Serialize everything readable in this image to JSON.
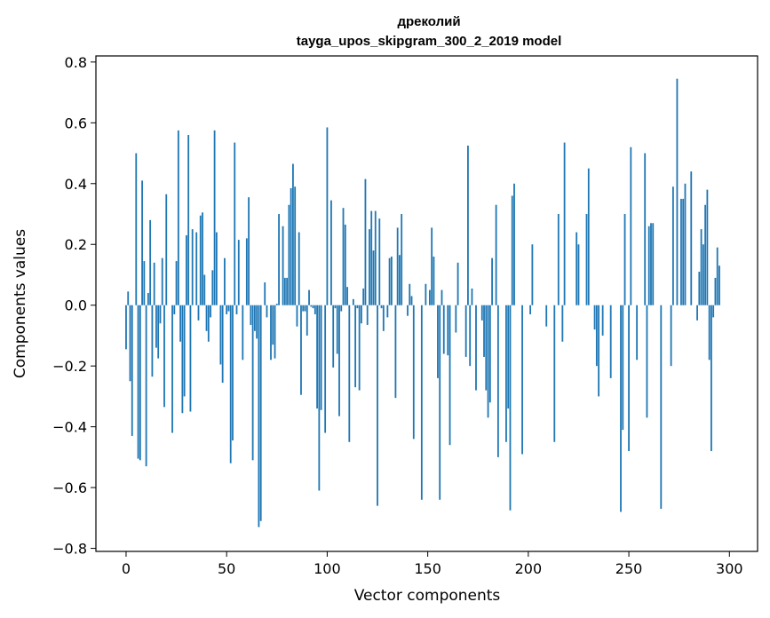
{
  "chart_data": {
    "type": "bar",
    "title": "дреколий",
    "subtitle": "tayga_upos_skipgram_300_2_2019 model",
    "xlabel": "Vector components",
    "ylabel": "Components values",
    "xlim": [
      -15,
      314
    ],
    "ylim": [
      -0.81,
      0.82
    ],
    "xticks": [
      0,
      50,
      100,
      150,
      200,
      250,
      300
    ],
    "xtick_labels": [
      "0",
      "50",
      "100",
      "150",
      "200",
      "250",
      "300"
    ],
    "yticks": [
      -0.8,
      -0.6,
      -0.4,
      -0.2,
      0.0,
      0.2,
      0.4,
      0.6,
      0.8
    ],
    "ytick_labels": [
      "−0.8",
      "−0.6",
      "−0.4",
      "−0.2",
      "0.0",
      "0.2",
      "0.4",
      "0.6",
      "0.8"
    ],
    "grid": false,
    "bar_color": "#1f77b4",
    "values": [
      -0.145,
      0.045,
      -0.25,
      -0.43,
      0.0,
      0.5,
      -0.505,
      -0.51,
      0.41,
      0.145,
      -0.53,
      0.04,
      0.28,
      -0.235,
      0.14,
      -0.14,
      -0.175,
      -0.06,
      0.155,
      -0.335,
      0.365,
      0.0,
      0.0,
      -0.42,
      -0.03,
      0.145,
      0.575,
      -0.12,
      -0.355,
      -0.3,
      0.23,
      0.56,
      -0.35,
      0.25,
      0.0,
      0.24,
      -0.05,
      0.295,
      0.305,
      0.1,
      -0.085,
      -0.12,
      -0.04,
      0.115,
      0.575,
      0.24,
      0.0,
      -0.195,
      -0.255,
      0.155,
      -0.03,
      -0.02,
      -0.52,
      -0.445,
      0.535,
      -0.03,
      0.215,
      0.0,
      -0.18,
      0.0,
      0.22,
      0.355,
      -0.065,
      -0.51,
      -0.085,
      -0.11,
      -0.73,
      -0.71,
      0.0,
      0.075,
      -0.04,
      0.0,
      -0.18,
      -0.13,
      -0.175,
      0.005,
      0.3,
      0.0,
      0.26,
      0.09,
      0.09,
      0.33,
      0.385,
      0.465,
      0.39,
      -0.07,
      0.24,
      -0.295,
      -0.02,
      -0.02,
      -0.1,
      0.05,
      -0.005,
      -0.01,
      -0.03,
      -0.34,
      -0.61,
      -0.345,
      0.0,
      -0.42,
      0.585,
      0.0,
      0.345,
      -0.205,
      -0.01,
      -0.16,
      -0.365,
      -0.02,
      0.32,
      0.265,
      0.06,
      -0.45,
      0.0,
      0.02,
      -0.27,
      -0.01,
      -0.28,
      -0.06,
      0.055,
      0.415,
      -0.065,
      0.25,
      0.31,
      0.18,
      0.31,
      -0.66,
      0.285,
      -0.01,
      -0.085,
      0.0,
      -0.04,
      0.155,
      0.16,
      0.0,
      -0.305,
      0.255,
      0.165,
      0.3,
      0.0,
      0.0,
      -0.035,
      0.07,
      0.03,
      -0.44,
      0.0,
      0.0,
      0.0,
      -0.64,
      0.0,
      0.07,
      0.0,
      0.05,
      0.255,
      0.16,
      0.0,
      -0.24,
      -0.64,
      0.05,
      -0.16,
      0.0,
      -0.165,
      -0.46,
      0.0,
      0.0,
      -0.09,
      0.14,
      0.0,
      0.0,
      0.0,
      -0.17,
      0.525,
      -0.2,
      0.055,
      0.0,
      -0.28,
      0.0,
      0.0,
      -0.05,
      -0.17,
      -0.28,
      -0.37,
      -0.32,
      0.155,
      0.0,
      0.33,
      -0.5,
      0.0,
      0.0,
      0.0,
      -0.45,
      -0.34,
      -0.675,
      0.36,
      0.4,
      0.0,
      0.0,
      0.0,
      -0.49,
      0.0,
      0.0,
      0.0,
      -0.03,
      0.2,
      0.0,
      0.0,
      0.0,
      0.0,
      0.0,
      0.0,
      -0.07,
      0.0,
      0.0,
      0.0,
      -0.45,
      0.0,
      0.3,
      0.0,
      -0.12,
      0.535,
      0.0,
      0.0,
      0.0,
      0.0,
      0.0,
      0.24,
      0.2,
      0.0,
      0.0,
      0.0,
      0.3,
      0.45,
      0.0,
      0.0,
      -0.08,
      -0.2,
      -0.3,
      0.0,
      -0.1,
      0.0,
      0.0,
      0.0,
      -0.24,
      0.0,
      0.0,
      0.0,
      0.0,
      -0.68,
      -0.41,
      0.3,
      0.0,
      -0.48,
      0.52,
      0.0,
      0.0,
      -0.18,
      0.0,
      0.0,
      0.0,
      0.5,
      -0.37,
      0.26,
      0.27,
      0.27,
      0.0,
      0.0,
      0.0,
      -0.67,
      0.0,
      0.0,
      0.0,
      0.0,
      -0.2,
      0.39,
      0.0,
      0.745,
      0.0,
      0.35,
      0.35,
      0.4,
      0.0,
      0.0,
      0.44,
      0.0,
      0.0,
      -0.05,
      0.11,
      0.25,
      0.2,
      0.33,
      0.38,
      -0.18,
      -0.48,
      -0.04,
      0.09,
      0.19,
      0.13,
      0.0,
      0.0,
      0.0
    ],
    "note": ""
  }
}
